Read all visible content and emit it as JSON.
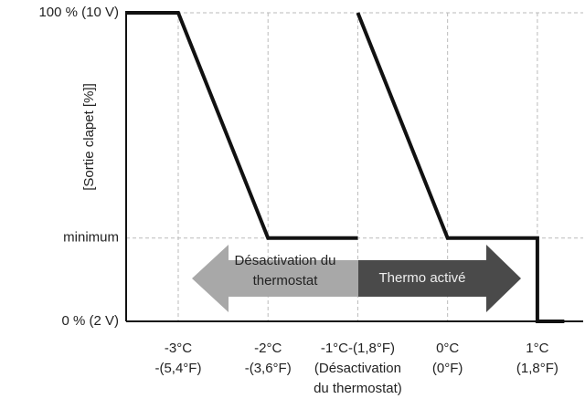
{
  "chart_data": {
    "type": "line",
    "y_label": "[Sortie clapet [%]]",
    "annotations": [
      "Désactivation du\nthermostat",
      "Thermo activé"
    ],
    "x": [
      -3.58,
      -3,
      -2,
      -1,
      -1,
      -1,
      0,
      1,
      1,
      1.3
    ],
    "series": [
      {
        "color": "#111111",
        "values": [
          100,
          100,
          27,
          27,
          null,
          100,
          27,
          27,
          0,
          0
        ]
      }
    ],
    "xlim": [
      -3.58,
      1.51
    ],
    "ylim": [
      0,
      100
    ],
    "xticks": [
      {
        "value": -3,
        "label": "-3°C\n-(5,4°F)"
      },
      {
        "value": -2,
        "label": "-2°C\n-(3,6°F)"
      },
      {
        "value": -1,
        "label": "-1°C-(1,8°F)\n(Désactivation\ndu thermostat)"
      },
      {
        "value": 0,
        "label": "0°C\n(0°F)"
      },
      {
        "value": 1,
        "label": "1°C\n(1,8°F)"
      }
    ],
    "yticks": [
      {
        "value": 0,
        "label": "0 % (2 V)"
      },
      {
        "value": 27,
        "label": "minimum"
      },
      {
        "value": 100,
        "label": "100 % (10 V)"
      }
    ],
    "grid": true
  }
}
